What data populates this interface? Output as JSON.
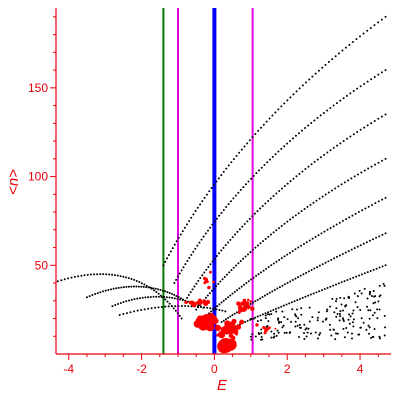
{
  "chart_data": {
    "type": "scatter",
    "xlabel": "E",
    "ylabel": "<n>",
    "xlim": [
      -4.35,
      4.85
    ],
    "ylim": [
      0,
      195
    ],
    "grid": false,
    "x_ticks": [
      -4,
      -2,
      0,
      2,
      4
    ],
    "y_ticks": [
      50,
      100,
      150
    ],
    "vertical_lines": [
      {
        "x": -1.4,
        "color": "#007a00"
      },
      {
        "x": -1.0,
        "color": "#e000e0"
      },
      {
        "x": 0.0,
        "color": "#0000ff"
      },
      {
        "x": 1.05,
        "color": "#e000e0"
      }
    ],
    "series": [
      {
        "color": "#000000",
        "bands": [
          {
            "x0": -4.3,
            "y0": 41,
            "x1": -2.1,
            "y1": 55,
            "x2": -0.9,
            "y2": 20,
            "n": 46
          },
          {
            "x0": -3.5,
            "y0": 32,
            "x1": -2.0,
            "y1": 45,
            "x2": -0.8,
            "y2": 30,
            "n": 40
          },
          {
            "x0": -2.8,
            "y0": 27,
            "x1": -1.5,
            "y1": 38,
            "x2": -0.3,
            "y2": 26,
            "n": 34
          },
          {
            "x0": -2.6,
            "y0": 22,
            "x1": -1.0,
            "y1": 31,
            "x2": 0.3,
            "y2": 24,
            "n": 32
          },
          {
            "x0": -1.4,
            "y0": 50,
            "x1": 0.6,
            "y1": 128,
            "x2": 4.7,
            "y2": 190,
            "n": 80
          },
          {
            "x0": -1.1,
            "y0": 40,
            "x1": 0.8,
            "y1": 110,
            "x2": 4.7,
            "y2": 160,
            "n": 78
          },
          {
            "x0": -0.8,
            "y0": 30,
            "x1": 1.0,
            "y1": 90,
            "x2": 4.7,
            "y2": 135,
            "n": 74
          },
          {
            "x0": -0.5,
            "y0": 25,
            "x1": 1.3,
            "y1": 72,
            "x2": 4.7,
            "y2": 110,
            "n": 70
          },
          {
            "x0": -0.2,
            "y0": 22,
            "x1": 1.6,
            "y1": 55,
            "x2": 4.7,
            "y2": 88,
            "n": 66
          },
          {
            "x0": 0.2,
            "y0": 18,
            "x1": 2.0,
            "y1": 42,
            "x2": 4.7,
            "y2": 68,
            "n": 62
          },
          {
            "x0": 0.5,
            "y0": 15,
            "x1": 2.4,
            "y1": 32,
            "x2": 4.7,
            "y2": 50,
            "n": 56
          }
        ],
        "cloud": {
          "x_min": 1.0,
          "x_max": 4.7,
          "y_min": 8,
          "y_max": 40,
          "n": 190
        }
      },
      {
        "color": "#ff0000",
        "clusters": [
          {
            "x": -0.2,
            "y": 18,
            "spread_x": 0.35,
            "spread_y": 5,
            "n": 45,
            "r_min": 1.5,
            "r_max": 5
          },
          {
            "x": 0.4,
            "y": 14,
            "spread_x": 0.5,
            "spread_y": 6,
            "n": 35,
            "r_min": 1.2,
            "r_max": 3.5
          },
          {
            "x": -0.5,
            "y": 29,
            "spread_x": 0.45,
            "spread_y": 2,
            "n": 20,
            "r_min": 1,
            "r_max": 2.5
          },
          {
            "x": 0.35,
            "y": 5,
            "spread_x": 0.15,
            "spread_y": 1.5,
            "n": 5,
            "r_min": 4,
            "r_max": 8
          },
          {
            "x": -0.15,
            "y": 40,
            "spread_x": 0.25,
            "spread_y": 8,
            "n": 10,
            "r_min": 1,
            "r_max": 2
          },
          {
            "x": 0.8,
            "y": 27,
            "spread_x": 0.4,
            "spread_y": 8,
            "n": 22,
            "r_min": 1,
            "r_max": 2.5
          },
          {
            "x": 1.4,
            "y": 14,
            "spread_x": 0.35,
            "spread_y": 3,
            "n": 10,
            "r_min": 0.8,
            "r_max": 1.8
          }
        ]
      }
    ]
  }
}
